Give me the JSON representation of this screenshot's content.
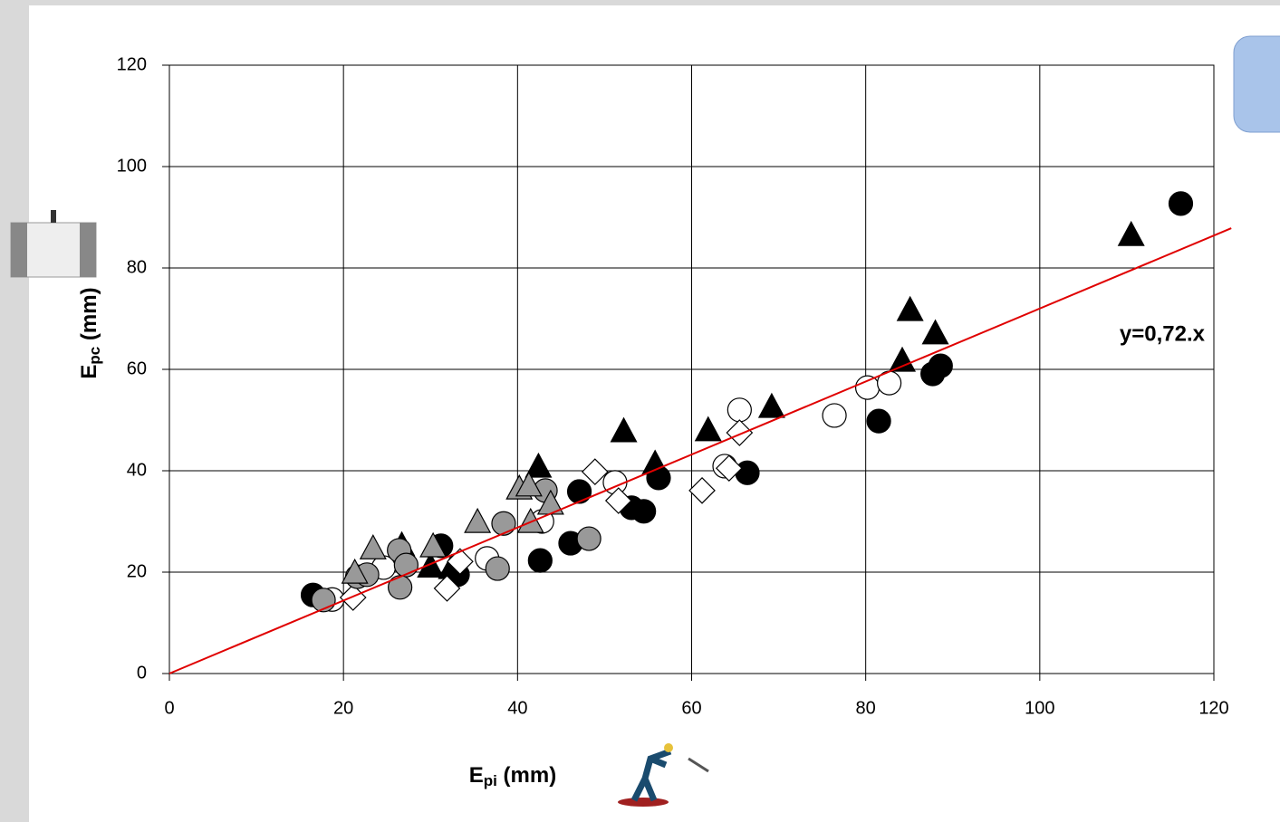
{
  "chart_data": {
    "type": "scatter",
    "x_label": {
      "main": "E",
      "sub": "pi",
      "unit": " (mm)"
    },
    "y_label": {
      "main": "E",
      "sub": "pc",
      "unit": " (mm)"
    },
    "xlim": [
      0,
      120
    ],
    "ylim": [
      0,
      120
    ],
    "xticks": [
      0,
      20,
      40,
      60,
      80,
      100,
      120
    ],
    "yticks": [
      0,
      20,
      40,
      60,
      80,
      100,
      120
    ],
    "grid": true,
    "series": [
      {
        "marker": "circle",
        "color": "#000000",
        "x": [
          16.5,
          31.2,
          33.1,
          42.6,
          46.1,
          47.1,
          53.1,
          54.5,
          56.2,
          66.4,
          81.5,
          87.7,
          88.6,
          116.2
        ],
        "values": [
          15.5,
          25.2,
          19.5,
          22.3,
          25.7,
          35.9,
          32.7,
          32,
          38.6,
          39.6,
          49.8,
          59.1,
          60.7,
          92.7
        ]
      },
      {
        "marker": "triangle",
        "color": "#000000",
        "x": [
          26.7,
          30,
          32.4,
          42.4,
          52.2,
          55.8,
          61.9,
          69.2,
          84.2,
          85.1,
          88,
          110.5
        ],
        "values": [
          25.2,
          21,
          20.7,
          40.7,
          47.7,
          41.3,
          47.9,
          52.5,
          61.6,
          71.6,
          67,
          86.4
        ]
      },
      {
        "marker": "circle",
        "color": "#ffffff",
        "x": [
          18.7,
          24.6,
          36.5,
          42.8,
          51.2,
          63.8,
          65.5,
          76.4,
          80.2,
          82.7
        ],
        "values": [
          14.6,
          20.9,
          22.7,
          30,
          37.7,
          40.9,
          52,
          50.9,
          56.4,
          57.3
        ]
      },
      {
        "marker": "diamond",
        "color": "#ffffff",
        "x": [
          21.1,
          31.9,
          33.4,
          48.9,
          51.6,
          61.2,
          64.3,
          65.5
        ],
        "values": [
          15,
          16.8,
          22.1,
          39.8,
          34.1,
          36.1,
          40.5,
          47.5
        ]
      },
      {
        "marker": "circle",
        "color": "#999999",
        "x": [
          17.7,
          21.6,
          22.7,
          26.4,
          27.2,
          26.5,
          37.7,
          38.4,
          43.2,
          48.2
        ],
        "values": [
          14.5,
          19.1,
          19.5,
          24.3,
          21.4,
          17,
          20.7,
          29.6,
          36.1,
          26.6
        ]
      },
      {
        "marker": "triangle",
        "color": "#999999",
        "x": [
          21.3,
          23.4,
          30.3,
          35.4,
          40.2,
          41.3,
          41.5,
          43.8
        ],
        "values": [
          19.8,
          24.6,
          25,
          29.8,
          36.4,
          37,
          29.8,
          33.4
        ]
      }
    ],
    "trendline": {
      "label": "y=0,72.x",
      "slope": 0.72,
      "x": [
        0,
        122
      ],
      "color": "#e00000"
    }
  }
}
